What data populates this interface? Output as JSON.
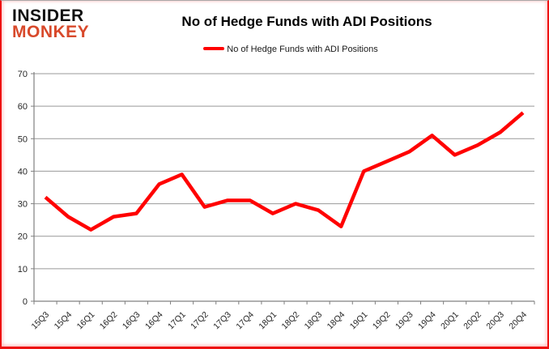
{
  "brand": {
    "line1": "INSIDER",
    "line2": "MONKEY",
    "line1_color": "#111111",
    "line2_color": "#d8492b"
  },
  "chart_data": {
    "type": "line",
    "title": "No of Hedge Funds with ADI Positions",
    "categories": [
      "15Q3",
      "15Q4",
      "16Q1",
      "16Q2",
      "16Q3",
      "16Q4",
      "17Q1",
      "17Q2",
      "17Q3",
      "17Q4",
      "18Q1",
      "18Q2",
      "18Q3",
      "18Q4",
      "19Q1",
      "19Q2",
      "19Q3",
      "19Q4",
      "20Q1",
      "20Q2",
      "20Q3",
      "20Q4"
    ],
    "series": [
      {
        "name": "No of Hedge Funds with ADI Positions",
        "color": "#ff0000",
        "values": [
          32,
          26,
          22,
          26,
          27,
          36,
          39,
          29,
          31,
          31,
          27,
          30,
          28,
          23,
          40,
          43,
          46,
          51,
          45,
          48,
          52,
          58
        ]
      }
    ],
    "xlabel": "",
    "ylabel": "",
    "ylim": [
      0,
      70
    ],
    "yticks": [
      0,
      10,
      20,
      30,
      40,
      50,
      60,
      70
    ],
    "grid": "horizontal",
    "legend_position": "top-center",
    "gridline_color": "#999999",
    "axis_color": "#808080",
    "tick_label_color": "#262626"
  }
}
